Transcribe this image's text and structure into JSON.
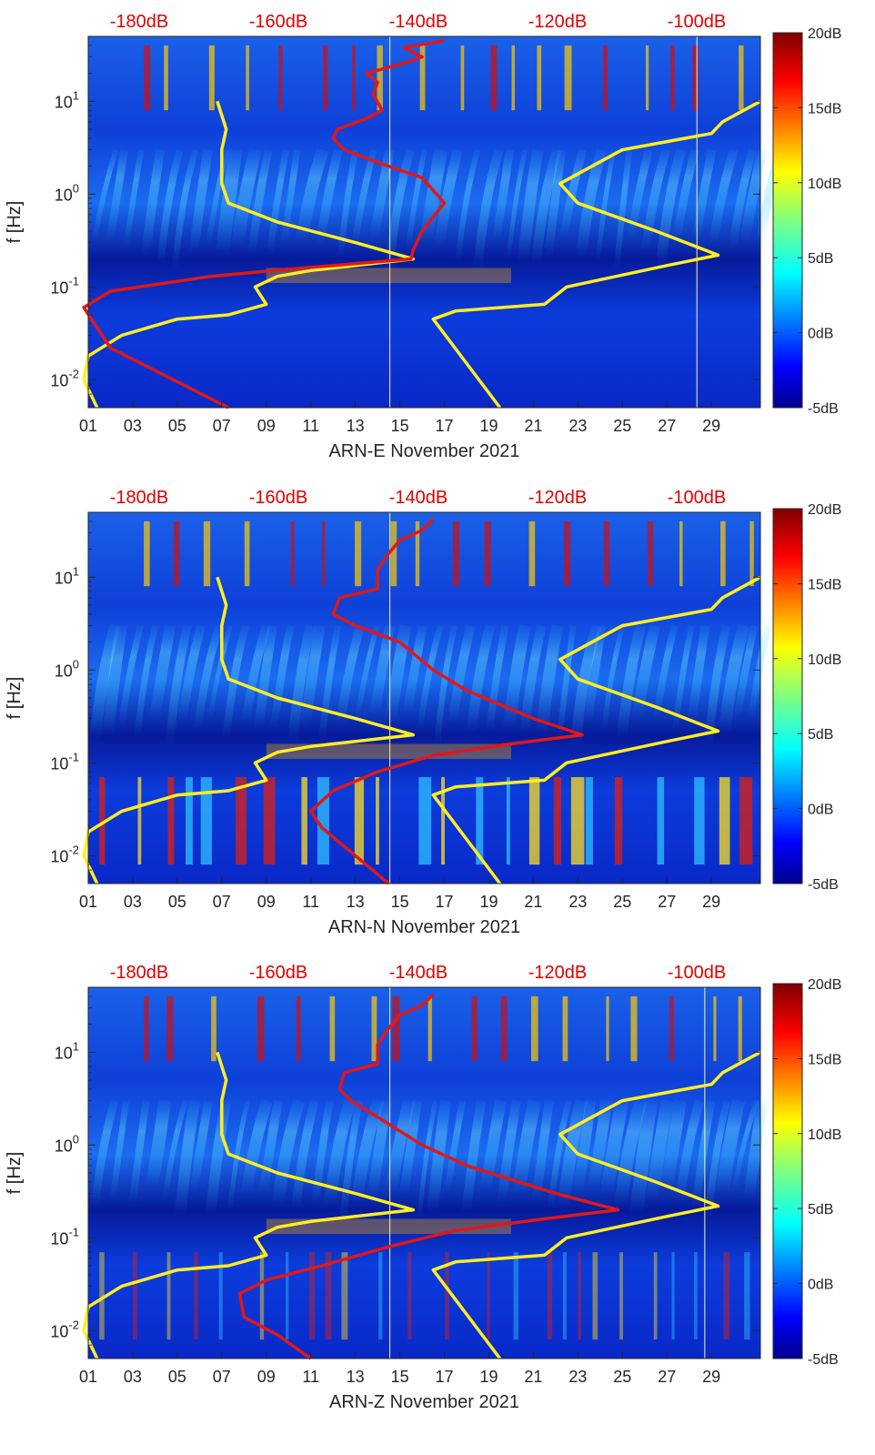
{
  "chart_data": [
    {
      "type": "heatmap",
      "panel": "E",
      "xlabel": "ARN-E November 2021",
      "ylabel": "f [Hz]",
      "x_tick_labels": [
        "01",
        "03",
        "05",
        "07",
        "09",
        "11",
        "13",
        "15",
        "17",
        "19",
        "21",
        "23",
        "25",
        "27",
        "29"
      ],
      "x_ticks_day": [
        1,
        3,
        5,
        7,
        9,
        11,
        13,
        15,
        17,
        19,
        21,
        23,
        25,
        27,
        29
      ],
      "xlim_day": [
        1,
        31.2
      ],
      "y_log_scale": true,
      "ylim_hz": [
        0.005,
        50
      ],
      "y_tick_labels": [
        "10^-2",
        "10^-1",
        "10^0",
        "10^1"
      ],
      "y_ticks_hz": [
        0.01,
        0.1,
        1,
        10
      ],
      "top_axis_labels": [
        "-180dB",
        "-160dB",
        "-140dB",
        "-120dB",
        "-100dB"
      ],
      "top_axis_values_db": [
        -180,
        -160,
        -140,
        -120,
        -100
      ],
      "colorbar": {
        "labels": [
          "20dB",
          "15dB",
          "10dB",
          "5dB",
          "0dB",
          "-5dB"
        ],
        "range_db": [
          -5,
          20
        ]
      },
      "red_curve": [
        [
          7.3,
          0.005
        ],
        [
          2.0,
          0.022
        ],
        [
          0.8,
          0.06
        ],
        [
          2.0,
          0.09
        ],
        [
          6.5,
          0.13
        ],
        [
          10.0,
          0.155
        ],
        [
          15.5,
          0.2
        ],
        [
          15.6,
          0.25
        ],
        [
          16.0,
          0.4
        ],
        [
          17.0,
          0.8
        ],
        [
          16.0,
          1.5
        ],
        [
          14.0,
          2.2
        ],
        [
          12.5,
          3.0
        ],
        [
          12.0,
          4.0
        ],
        [
          12.2,
          5.0
        ],
        [
          13.5,
          6.5
        ],
        [
          14.2,
          8
        ],
        [
          13.8,
          12
        ],
        [
          14.0,
          16
        ],
        [
          13.5,
          20
        ],
        [
          15.0,
          25
        ],
        [
          16.0,
          30
        ],
        [
          15.2,
          38
        ],
        [
          17.0,
          45
        ]
      ],
      "yellow_curve_1": [
        [
          1.4,
          0.005
        ],
        [
          0.8,
          0.01
        ],
        [
          1.0,
          0.018
        ],
        [
          2.5,
          0.03
        ],
        [
          5.0,
          0.045
        ],
        [
          7.3,
          0.05
        ],
        [
          9.0,
          0.065
        ],
        [
          8.5,
          0.1
        ],
        [
          9.5,
          0.13
        ],
        [
          11.0,
          0.15
        ],
        [
          15.6,
          0.2
        ],
        [
          13.0,
          0.3
        ],
        [
          9.5,
          0.5
        ],
        [
          7.3,
          0.8
        ],
        [
          7.0,
          1.3
        ],
        [
          7.0,
          3.0
        ],
        [
          7.2,
          5.0
        ],
        [
          6.8,
          10
        ]
      ],
      "yellow_curve_2": [
        [
          19.5,
          0.005
        ],
        [
          16.5,
          0.045
        ],
        [
          17.5,
          0.055
        ],
        [
          21.5,
          0.065
        ],
        [
          22.5,
          0.1
        ],
        [
          27.0,
          0.17
        ],
        [
          29.3,
          0.22
        ],
        [
          26.5,
          0.4
        ],
        [
          23.0,
          0.8
        ],
        [
          22.2,
          1.3
        ],
        [
          25.0,
          3.0
        ],
        [
          29.0,
          4.5
        ],
        [
          29.5,
          6.0
        ],
        [
          31.2,
          10
        ]
      ],
      "vertical_lines_day": [
        14.55,
        28.35
      ]
    },
    {
      "type": "heatmap",
      "panel": "N",
      "xlabel": "ARN-N November 2021",
      "ylabel": "f [Hz]",
      "x_tick_labels": [
        "01",
        "03",
        "05",
        "07",
        "09",
        "11",
        "13",
        "15",
        "17",
        "19",
        "21",
        "23",
        "25",
        "27",
        "29"
      ],
      "x_ticks_day": [
        1,
        3,
        5,
        7,
        9,
        11,
        13,
        15,
        17,
        19,
        21,
        23,
        25,
        27,
        29
      ],
      "xlim_day": [
        1,
        31.2
      ],
      "y_log_scale": true,
      "ylim_hz": [
        0.005,
        50
      ],
      "y_tick_labels": [
        "10^-2",
        "10^-1",
        "10^0",
        "10^1"
      ],
      "y_ticks_hz": [
        0.01,
        0.1,
        1,
        10
      ],
      "top_axis_labels": [
        "-180dB",
        "-160dB",
        "-140dB",
        "-120dB",
        "-100dB"
      ],
      "top_axis_values_db": [
        -180,
        -160,
        -140,
        -120,
        -100
      ],
      "colorbar": {
        "labels": [
          "20dB",
          "15dB",
          "10dB",
          "5dB",
          "0dB",
          "-5dB"
        ],
        "range_db": [
          -5,
          20
        ]
      },
      "red_curve": [
        [
          14.5,
          0.005
        ],
        [
          11.5,
          0.02
        ],
        [
          11.0,
          0.03
        ],
        [
          12.0,
          0.05
        ],
        [
          14.0,
          0.08
        ],
        [
          16.5,
          0.12
        ],
        [
          20.0,
          0.16
        ],
        [
          23.2,
          0.2
        ],
        [
          21.0,
          0.3
        ],
        [
          18.0,
          0.6
        ],
        [
          16.5,
          1.0
        ],
        [
          15.0,
          2.0
        ],
        [
          13.0,
          3.0
        ],
        [
          12.0,
          4.0
        ],
        [
          12.3,
          6.0
        ],
        [
          14.0,
          7.5
        ],
        [
          14.0,
          12
        ],
        [
          14.5,
          18
        ],
        [
          15.0,
          25
        ],
        [
          16.0,
          32
        ],
        [
          16.5,
          42
        ]
      ],
      "yellow_curve_1": [
        [
          1.4,
          0.005
        ],
        [
          0.8,
          0.01
        ],
        [
          1.0,
          0.018
        ],
        [
          2.5,
          0.03
        ],
        [
          5.0,
          0.045
        ],
        [
          7.3,
          0.05
        ],
        [
          9.0,
          0.065
        ],
        [
          8.5,
          0.1
        ],
        [
          9.5,
          0.13
        ],
        [
          11.0,
          0.15
        ],
        [
          15.6,
          0.2
        ],
        [
          13.0,
          0.3
        ],
        [
          9.5,
          0.5
        ],
        [
          7.3,
          0.8
        ],
        [
          7.0,
          1.3
        ],
        [
          7.0,
          3.0
        ],
        [
          7.2,
          5.0
        ],
        [
          6.8,
          10
        ]
      ],
      "yellow_curve_2": [
        [
          19.5,
          0.005
        ],
        [
          16.5,
          0.045
        ],
        [
          17.5,
          0.055
        ],
        [
          21.5,
          0.065
        ],
        [
          22.5,
          0.1
        ],
        [
          27.0,
          0.17
        ],
        [
          29.3,
          0.22
        ],
        [
          26.5,
          0.4
        ],
        [
          23.0,
          0.8
        ],
        [
          22.2,
          1.3
        ],
        [
          25.0,
          3.0
        ],
        [
          29.0,
          4.5
        ],
        [
          29.5,
          6.0
        ],
        [
          31.2,
          10
        ]
      ],
      "vertical_lines_day": [
        14.55
      ]
    },
    {
      "type": "heatmap",
      "panel": "Z",
      "xlabel": "ARN-Z November 2021",
      "ylabel": "f [Hz]",
      "x_tick_labels": [
        "01",
        "03",
        "05",
        "07",
        "09",
        "11",
        "13",
        "15",
        "17",
        "19",
        "21",
        "23",
        "25",
        "27",
        "29"
      ],
      "x_ticks_day": [
        1,
        3,
        5,
        7,
        9,
        11,
        13,
        15,
        17,
        19,
        21,
        23,
        25,
        27,
        29
      ],
      "xlim_day": [
        1,
        31.2
      ],
      "y_log_scale": true,
      "ylim_hz": [
        0.005,
        50
      ],
      "y_tick_labels": [
        "10^-2",
        "10^-1",
        "10^0",
        "10^1"
      ],
      "y_ticks_hz": [
        0.01,
        0.1,
        1,
        10
      ],
      "top_axis_labels": [
        "-180dB",
        "-160dB",
        "-140dB",
        "-120dB",
        "-100dB"
      ],
      "top_axis_values_db": [
        -180,
        -160,
        -140,
        -120,
        -100
      ],
      "colorbar": {
        "labels": [
          "20dB",
          "15dB",
          "10dB",
          "5dB",
          "0dB",
          "-5dB"
        ],
        "range_db": [
          -5,
          20
        ]
      },
      "red_curve": [
        [
          11.0,
          0.005
        ],
        [
          9.5,
          0.009
        ],
        [
          8.0,
          0.014
        ],
        [
          7.8,
          0.025
        ],
        [
          9.0,
          0.035
        ],
        [
          11.5,
          0.05
        ],
        [
          14.5,
          0.08
        ],
        [
          17.5,
          0.12
        ],
        [
          21.5,
          0.16
        ],
        [
          24.8,
          0.2
        ],
        [
          22.0,
          0.3
        ],
        [
          18.0,
          0.6
        ],
        [
          16.0,
          1.0
        ],
        [
          14.0,
          2.0
        ],
        [
          12.8,
          3.0
        ],
        [
          12.3,
          4.0
        ],
        [
          12.5,
          6.0
        ],
        [
          14.0,
          7.5
        ],
        [
          14.0,
          12
        ],
        [
          14.5,
          18
        ],
        [
          15.0,
          25
        ],
        [
          16.0,
          32
        ],
        [
          16.5,
          42
        ]
      ],
      "yellow_curve_1": [
        [
          1.4,
          0.005
        ],
        [
          0.8,
          0.01
        ],
        [
          1.0,
          0.018
        ],
        [
          2.5,
          0.03
        ],
        [
          5.0,
          0.045
        ],
        [
          7.3,
          0.05
        ],
        [
          9.0,
          0.065
        ],
        [
          8.5,
          0.1
        ],
        [
          9.5,
          0.13
        ],
        [
          11.0,
          0.15
        ],
        [
          15.6,
          0.2
        ],
        [
          13.0,
          0.3
        ],
        [
          9.5,
          0.5
        ],
        [
          7.3,
          0.8
        ],
        [
          7.0,
          1.3
        ],
        [
          7.0,
          3.0
        ],
        [
          7.2,
          5.0
        ],
        [
          6.8,
          10
        ]
      ],
      "yellow_curve_2": [
        [
          19.5,
          0.005
        ],
        [
          16.5,
          0.045
        ],
        [
          17.5,
          0.055
        ],
        [
          21.5,
          0.065
        ],
        [
          22.5,
          0.1
        ],
        [
          27.0,
          0.17
        ],
        [
          29.3,
          0.22
        ],
        [
          26.5,
          0.4
        ],
        [
          23.0,
          0.8
        ],
        [
          22.2,
          1.3
        ],
        [
          25.0,
          3.0
        ],
        [
          29.0,
          4.5
        ],
        [
          29.5,
          6.0
        ],
        [
          31.2,
          10
        ]
      ],
      "vertical_lines_day": [
        14.55,
        28.7
      ]
    }
  ]
}
